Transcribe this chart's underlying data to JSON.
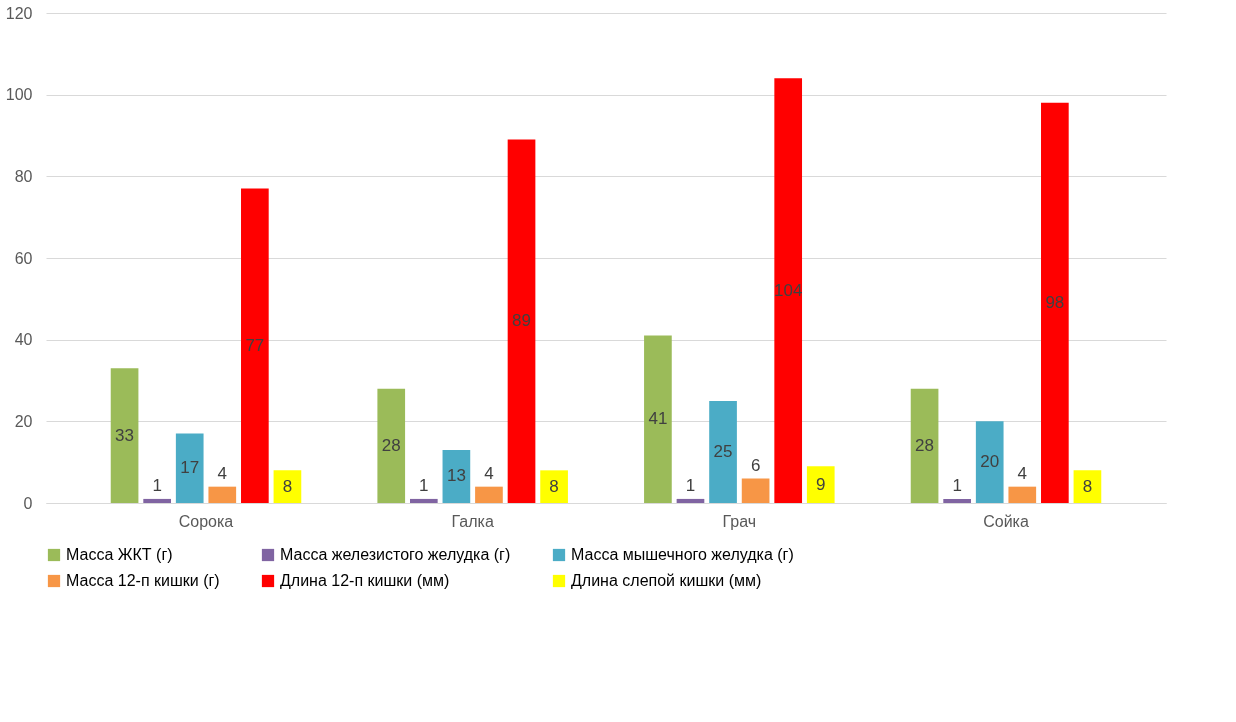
{
  "chart_data": {
    "type": "bar",
    "categories": [
      "Сорока",
      "Галка",
      "Грач",
      "Сойка"
    ],
    "series": [
      {
        "name": "Масса ЖКТ (г)",
        "color": "#9bbb59",
        "values": [
          33,
          28,
          41,
          28
        ]
      },
      {
        "name": "Масса железистого желудка (г)",
        "color": "#8064a2",
        "values": [
          1,
          1,
          1,
          1
        ]
      },
      {
        "name": "Масса мышечного желудка (г)",
        "color": "#4bacc6",
        "values": [
          17,
          13,
          25,
          20
        ]
      },
      {
        "name": "Масса 12-п кишки (г)",
        "color": "#f79646",
        "values": [
          4,
          4,
          6,
          4
        ]
      },
      {
        "name": "Длина 12-п кишки (мм)",
        "color": "#ff0000",
        "values": [
          77,
          89,
          104,
          98
        ]
      },
      {
        "name": "Длина слепой кишки (мм)",
        "color": "#ffff00",
        "values": [
          8,
          8,
          9,
          8
        ]
      }
    ],
    "ylim": [
      0,
      120
    ],
    "yticks": [
      0,
      20,
      40,
      60,
      80,
      100,
      120
    ],
    "grid": "y",
    "legend": "bottom",
    "data_labels": true
  }
}
